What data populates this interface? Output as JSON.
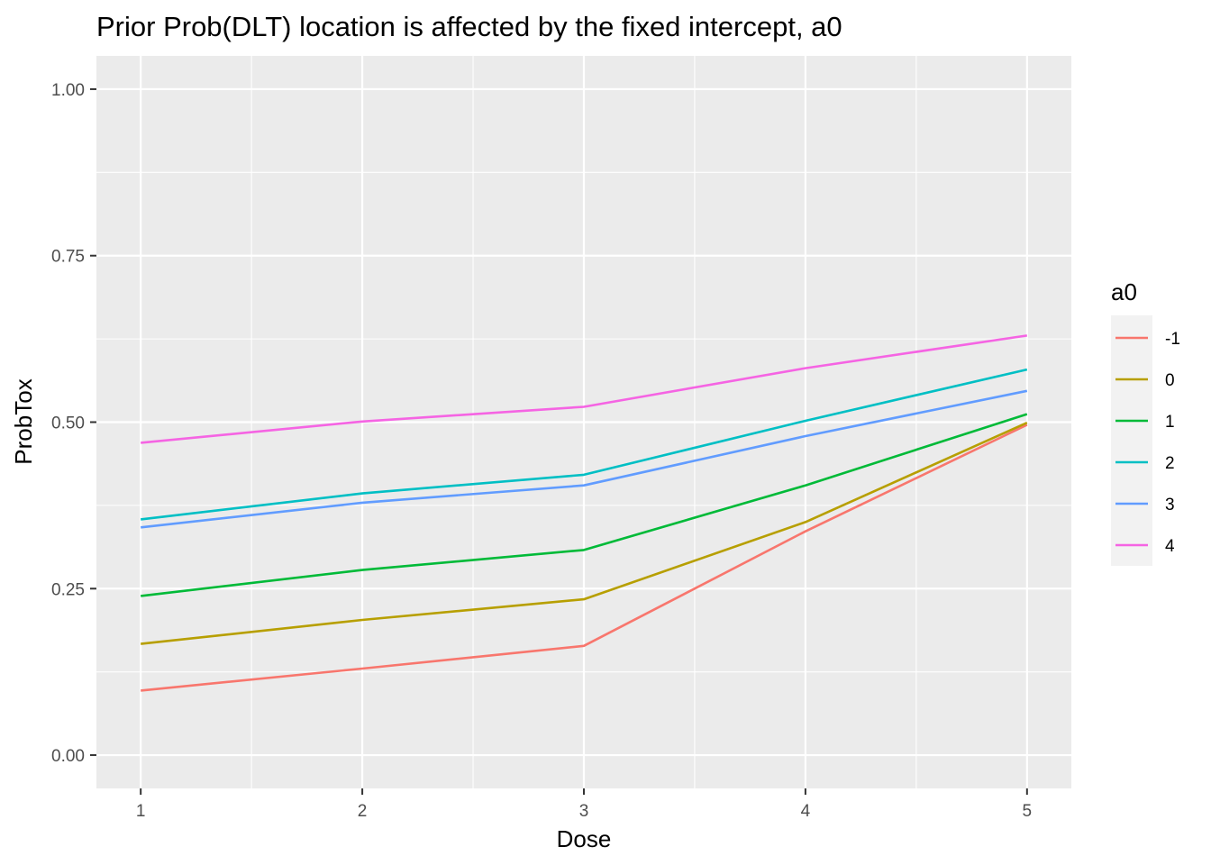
{
  "chart_data": {
    "type": "line",
    "title": "Prior Prob(DLT) location is affected by the fixed intercept, a0",
    "xlabel": "Dose",
    "ylabel": "ProbTox",
    "x": [
      1,
      2,
      3,
      4,
      5
    ],
    "x_ticks": [
      "1",
      "2",
      "3",
      "4",
      "5"
    ],
    "xlim": [
      0.8,
      5.2
    ],
    "ylim": [
      -0.05,
      1.05
    ],
    "y_ticks": [
      "0.00",
      "0.25",
      "0.50",
      "0.75",
      "1.00"
    ],
    "y_tick_values": [
      0,
      0.25,
      0.5,
      0.75,
      1.0
    ],
    "grid": true,
    "legend": {
      "title": "a0",
      "position": "right"
    },
    "series": [
      {
        "name": "-1",
        "color": "#F8766D",
        "values": [
          0.097,
          0.13,
          0.164,
          0.336,
          0.496
        ]
      },
      {
        "name": "0",
        "color": "#B79F00",
        "values": [
          0.167,
          0.203,
          0.234,
          0.35,
          0.499
        ]
      },
      {
        "name": "1",
        "color": "#00BA38",
        "values": [
          0.239,
          0.278,
          0.308,
          0.405,
          0.512
        ]
      },
      {
        "name": "2",
        "color": "#00BFC4",
        "values": [
          0.354,
          0.393,
          0.421,
          0.502,
          0.579
        ]
      },
      {
        "name": "3",
        "color": "#619CFF",
        "values": [
          0.342,
          0.379,
          0.405,
          0.479,
          0.547
        ]
      },
      {
        "name": "4",
        "color": "#F564E3",
        "values": [
          0.469,
          0.501,
          0.523,
          0.581,
          0.63
        ]
      }
    ]
  }
}
